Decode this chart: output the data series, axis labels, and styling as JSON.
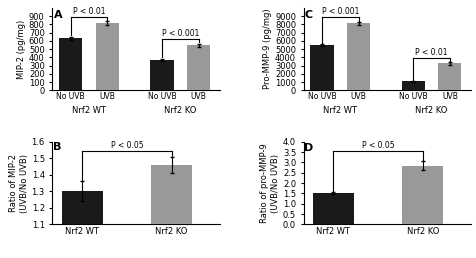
{
  "A": {
    "label": "A",
    "ylabel": "MIP-2 (pg/mg)",
    "groups": [
      "Nrf2 WT",
      "Nrf2 KO"
    ],
    "subgroups": [
      "No UVB",
      "UVB",
      "No UVB",
      "UVB"
    ],
    "values": [
      [
        630,
        815
      ],
      [
        370,
        545
      ]
    ],
    "errors": [
      [
        20,
        25
      ],
      [
        15,
        20
      ]
    ],
    "ylim": [
      0,
      1000
    ],
    "yticks": [
      0,
      100,
      200,
      300,
      400,
      500,
      600,
      700,
      800,
      900
    ],
    "sig_wt": "P < 0.01",
    "sig_ko": "P < 0.001"
  },
  "B": {
    "label": "B",
    "ylabel": "Ratio of MIP-2\n(UVB/No UVB)",
    "groups": [
      "Nrf2 WT",
      "Nrf2 KO"
    ],
    "values": [
      1.3,
      1.46
    ],
    "errors": [
      0.06,
      0.05
    ],
    "ylim": [
      1.1,
      1.6
    ],
    "yticks": [
      1.1,
      1.2,
      1.3,
      1.4,
      1.5,
      1.6
    ],
    "sig": "P < 0.05"
  },
  "C": {
    "label": "C",
    "ylabel": "Pro-MMP-9 (pg/mg)",
    "groups": [
      "Nrf2 WT",
      "Nrf2 KO"
    ],
    "subgroups": [
      "No UVB",
      "UVB",
      "No UVB",
      "UVB"
    ],
    "values": [
      [
        5500,
        8100
      ],
      [
        1100,
        3300
      ]
    ],
    "errors": [
      [
        150,
        200
      ],
      [
        100,
        200
      ]
    ],
    "ylim": [
      0,
      10000
    ],
    "yticks": [
      0,
      1000,
      2000,
      3000,
      4000,
      5000,
      6000,
      7000,
      8000,
      9000
    ],
    "sig_wt": "P < 0.001",
    "sig_ko": "P < 0.01"
  },
  "D": {
    "label": "D",
    "ylabel": "Ratio of pro-MMP-9\n(UVB/No UVB)",
    "groups": [
      "Nrf2 WT",
      "Nrf2 KO"
    ],
    "values": [
      1.52,
      2.85
    ],
    "errors": [
      0.05,
      0.22
    ],
    "ylim": [
      0,
      4.0
    ],
    "yticks": [
      0.0,
      0.5,
      1.0,
      1.5,
      2.0,
      2.5,
      3.0,
      3.5,
      4.0
    ],
    "sig": "P < 0.05"
  },
  "bar_colors": [
    "#1a1a1a",
    "#999999"
  ],
  "fontsize": 6,
  "label_fontsize": 8
}
